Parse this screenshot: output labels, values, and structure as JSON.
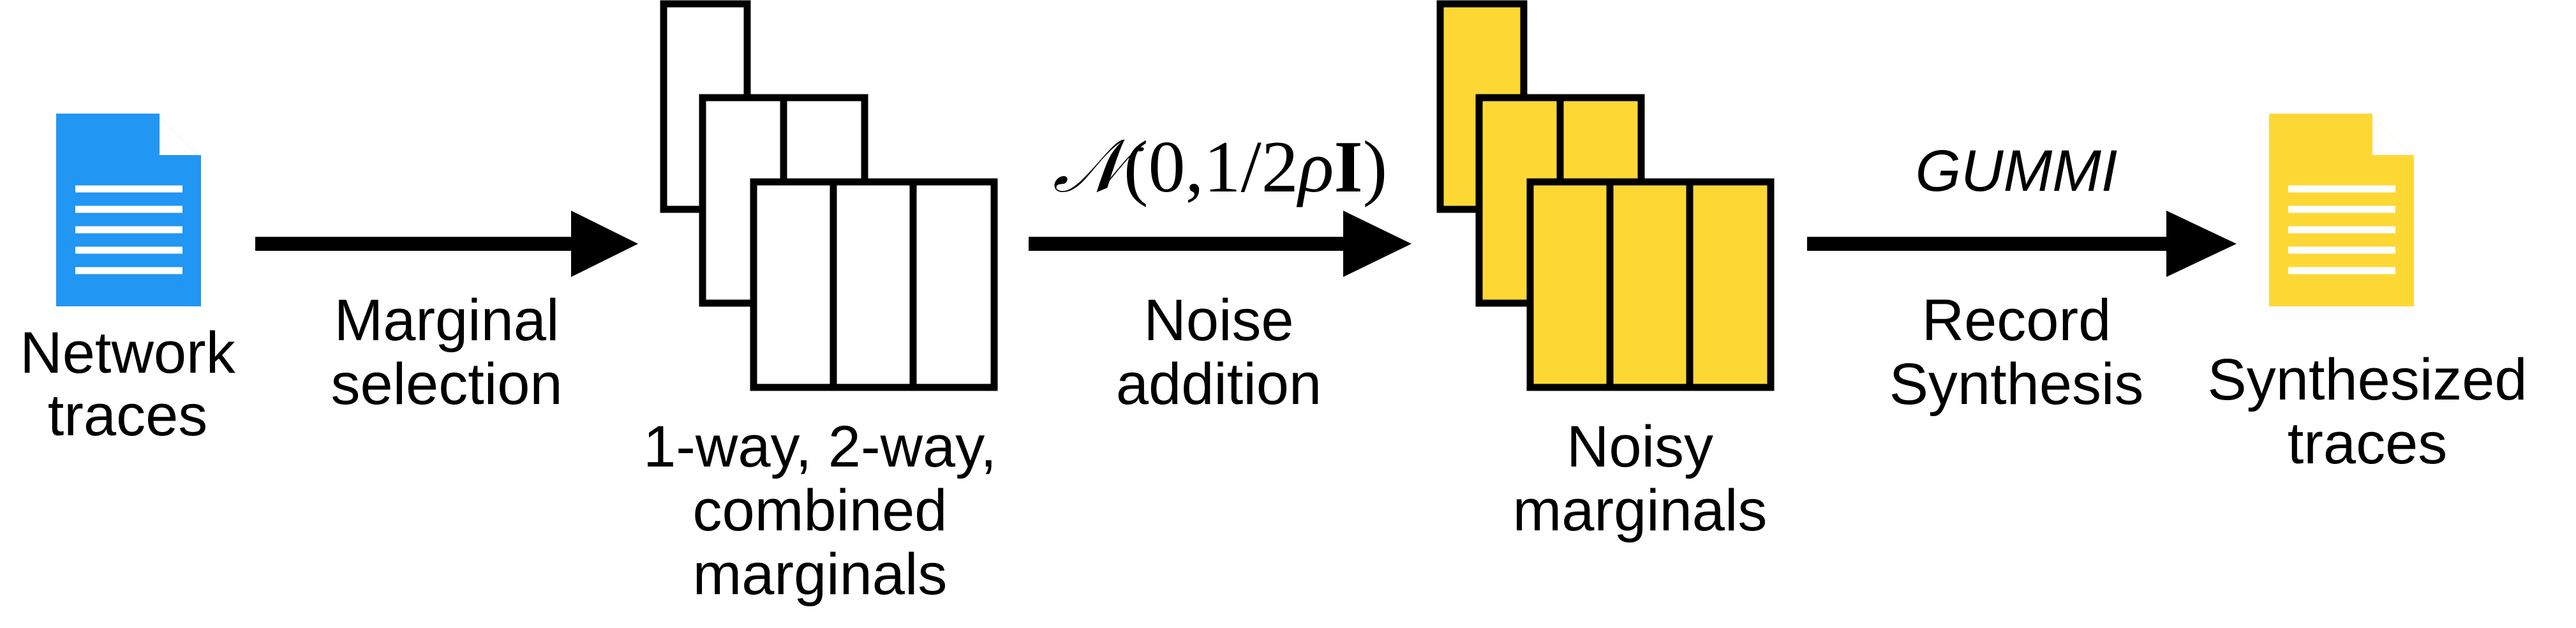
{
  "colors": {
    "input_doc": "#2196F3",
    "output_doc": "#FDD835",
    "noisy_fill": "#FDD835",
    "outline": "#000000",
    "arrow": "#000000"
  },
  "stages": {
    "input": {
      "label_line1": "Network",
      "label_line2": "traces",
      "icon": "document-icon"
    },
    "step1": {
      "label_line1": "Marginal",
      "label_line2": "selection"
    },
    "marginals": {
      "label_line1": "1-way, 2-way,",
      "label_line2": "combined",
      "label_line3": "marginals"
    },
    "step2": {
      "formula": {
        "symbol": "𝒩",
        "open": "(0,1/2",
        "rho": "ρ",
        "identity": "I",
        "close": ")"
      },
      "label_line1": "Noise",
      "label_line2": "addition"
    },
    "noisy": {
      "label_line1": "Noisy",
      "label_line2": "marginals"
    },
    "step3": {
      "method": "GUMMI",
      "label_line1": "Record",
      "label_line2": "Synthesis"
    },
    "output": {
      "label_line1": "Synthesized",
      "label_line2": "traces",
      "icon": "document-icon"
    }
  }
}
